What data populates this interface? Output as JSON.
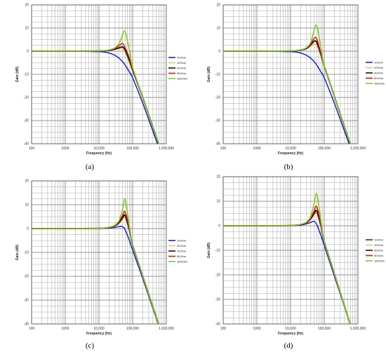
{
  "chart_data": [
    {
      "type": "line",
      "caption": "(a)",
      "xlabel": "Frequency (Hz)",
      "ylabel": "Gain (dB)",
      "xscale": "log",
      "xlim": [
        100,
        1000000
      ],
      "ylim": [
        -40,
        20
      ],
      "xticklabels": [
        "100",
        "1000",
        "10,000",
        "100,000",
        "1,000,000"
      ],
      "yticks": [
        20,
        10,
        0,
        -10,
        -20,
        -30,
        -40
      ],
      "grid": true,
      "legend_position": "right",
      "colors": [
        "#1f1fd0",
        "#f0c070",
        "#111111",
        "#e01010",
        "#7ccc1c"
      ],
      "series": [
        {
          "name": "10Ohm",
          "x": [
            100,
            1000,
            10000,
            20000,
            30000,
            40000,
            50000,
            60000,
            80000,
            100000,
            200000,
            500000,
            800000
          ],
          "y": [
            0,
            0,
            -0.2,
            -0.8,
            -1.8,
            -3.1,
            -4.5,
            -6,
            -9,
            -11.5,
            -22.5,
            -38.5,
            -46
          ]
        },
        {
          "name": "20Ohm",
          "x": [
            100,
            1000,
            10000,
            20000,
            30000,
            40000,
            50000,
            60000,
            80000,
            100000,
            200000,
            500000,
            800000
          ],
          "y": [
            0,
            0,
            0.1,
            0.4,
            0.8,
            1,
            0.8,
            -0.5,
            -5,
            -8.5,
            -20.5,
            -37,
            -45
          ]
        },
        {
          "name": "40Ohm",
          "x": [
            100,
            1000,
            10000,
            20000,
            30000,
            40000,
            50000,
            60000,
            80000,
            100000,
            200000,
            500000,
            800000
          ],
          "y": [
            0,
            0,
            0.1,
            0.4,
            0.9,
            1.5,
            1.8,
            0.5,
            -4,
            -8,
            -20,
            -37,
            -45
          ]
        },
        {
          "name": "80Ohm",
          "x": [
            100,
            1000,
            10000,
            20000,
            30000,
            40000,
            50000,
            60000,
            80000,
            100000,
            200000,
            500000,
            800000
          ],
          "y": [
            0,
            0,
            0.1,
            0.5,
            1.2,
            2.5,
            3.3,
            1.5,
            -3,
            -7.5,
            -20,
            -37,
            -45
          ]
        },
        {
          "name": "160Ohm",
          "x": [
            100,
            1000,
            10000,
            20000,
            30000,
            40000,
            50000,
            60000,
            80000,
            100000,
            200000,
            500000,
            800000
          ],
          "y": [
            0,
            0,
            0.1,
            0.6,
            1.5,
            3.5,
            7,
            8.4,
            0.5,
            -7,
            -20,
            -37,
            -45
          ]
        }
      ]
    },
    {
      "type": "line",
      "caption": "(b)",
      "xlabel": "Frequency (Hz)",
      "ylabel": "Gain (dB)",
      "xscale": "log",
      "xlim": [
        100,
        1000000
      ],
      "ylim": [
        -40,
        20
      ],
      "xticklabels": [
        "100",
        "1000",
        "10,000",
        "100,000",
        "1,000,000"
      ],
      "yticks": [
        20,
        10,
        0,
        -10,
        -20,
        -30,
        -40
      ],
      "grid": true,
      "legend_position": "right",
      "colors": [
        "#1f1fd0",
        "#f0c070",
        "#111111",
        "#e01010",
        "#7ccc1c"
      ],
      "series": [
        {
          "name": "10Ohm",
          "x": [
            100,
            1000,
            10000,
            20000,
            30000,
            40000,
            50000,
            60000,
            80000,
            100000,
            200000,
            500000,
            800000
          ],
          "y": [
            0,
            0,
            -0.2,
            -0.8,
            -1.8,
            -3.1,
            -4.5,
            -6,
            -9,
            -11.5,
            -22.5,
            -38.5,
            -46
          ]
        },
        {
          "name": "20Ohm",
          "x": [
            100,
            1000,
            10000,
            20000,
            30000,
            40000,
            50000,
            60000,
            80000,
            100000,
            200000,
            500000,
            800000
          ],
          "y": [
            0,
            0,
            0.1,
            0.5,
            1.2,
            2.3,
            3,
            2.5,
            -2,
            -6.5,
            -19.5,
            -37,
            -45
          ]
        },
        {
          "name": "40Ohm",
          "x": [
            100,
            1000,
            10000,
            20000,
            30000,
            40000,
            50000,
            60000,
            80000,
            100000,
            200000,
            500000,
            800000
          ],
          "y": [
            0,
            0,
            0.1,
            0.5,
            1.2,
            2.8,
            4.3,
            3.8,
            -1.5,
            -6.5,
            -19.5,
            -37,
            -45
          ]
        },
        {
          "name": "80Ohm",
          "x": [
            100,
            1000,
            10000,
            20000,
            30000,
            40000,
            50000,
            60000,
            80000,
            100000,
            200000,
            500000,
            800000
          ],
          "y": [
            0,
            0,
            0.1,
            0.6,
            1.4,
            3.2,
            5.6,
            5.3,
            -1,
            -6.5,
            -19.5,
            -37,
            -45
          ]
        },
        {
          "name": "160Ohm",
          "x": [
            100,
            1000,
            10000,
            20000,
            30000,
            40000,
            50000,
            60000,
            80000,
            100000,
            200000,
            500000,
            800000
          ],
          "y": [
            0,
            0,
            0.1,
            0.6,
            1.6,
            4,
            9,
            11,
            1.5,
            -6.5,
            -19.5,
            -37,
            -45
          ]
        }
      ]
    },
    {
      "type": "line",
      "caption": "(c)",
      "xlabel": "Frequency (Hz)",
      "ylabel": "Gain (dB)",
      "xscale": "log",
      "xlim": [
        100,
        1000000
      ],
      "ylim": [
        -40,
        20
      ],
      "xticklabels": [
        "100",
        "1000",
        "10,000",
        "100,000",
        "1,000,000"
      ],
      "yticks": [
        20,
        10,
        0,
        -10,
        -20,
        -30,
        -40
      ],
      "grid": true,
      "legend_position": "right",
      "colors": [
        "#1f1fd0",
        "#f0c070",
        "#111111",
        "#e01010",
        "#7ccc1c"
      ],
      "series": [
        {
          "name": "10Ohm",
          "x": [
            100,
            1000,
            10000,
            20000,
            30000,
            40000,
            50000,
            60000,
            80000,
            100000,
            200000,
            500000,
            800000
          ],
          "y": [
            0,
            0,
            0.05,
            0.2,
            0.5,
            0.9,
            0.8,
            -0.5,
            -5,
            -9,
            -21,
            -37.5,
            -45.5
          ]
        },
        {
          "name": "20Ohm",
          "x": [
            100,
            1000,
            10000,
            20000,
            30000,
            40000,
            50000,
            60000,
            80000,
            100000,
            200000,
            500000,
            800000
          ],
          "y": [
            0,
            0,
            0.1,
            0.4,
            1,
            2.2,
            3.8,
            4.5,
            -1,
            -7,
            -20,
            -37,
            -45
          ]
        },
        {
          "name": "40Ohm",
          "x": [
            100,
            1000,
            10000,
            20000,
            30000,
            40000,
            50000,
            60000,
            80000,
            100000,
            200000,
            500000,
            800000
          ],
          "y": [
            0,
            0,
            0.1,
            0.5,
            1.2,
            2.6,
            4.5,
            5.5,
            -0.5,
            -7,
            -20,
            -37,
            -45
          ]
        },
        {
          "name": "80Ohm",
          "x": [
            100,
            1000,
            10000,
            20000,
            30000,
            40000,
            50000,
            60000,
            80000,
            100000,
            200000,
            500000,
            800000
          ],
          "y": [
            0,
            0,
            0.1,
            0.5,
            1.3,
            3,
            5.5,
            7,
            0,
            -7,
            -20,
            -37,
            -45
          ]
        },
        {
          "name": "160Ohm",
          "x": [
            100,
            1000,
            10000,
            20000,
            30000,
            40000,
            50000,
            60000,
            80000,
            100000,
            200000,
            500000,
            800000
          ],
          "y": [
            0,
            0,
            0.1,
            0.6,
            1.5,
            3.6,
            8,
            12.2,
            1,
            -7,
            -20,
            -37,
            -45
          ]
        }
      ]
    },
    {
      "type": "line",
      "caption": "(d)",
      "xlabel": "Frequency (Hz)",
      "ylabel": "Gain (dB)",
      "xscale": "log",
      "xlim": [
        100,
        1000000
      ],
      "ylim": [
        -40,
        20
      ],
      "xticklabels": [
        "100",
        "1000",
        "10,000",
        "100,000",
        "1,000,000"
      ],
      "yticks": [
        20,
        10,
        0,
        -10,
        -20,
        -30,
        -40
      ],
      "grid": true,
      "legend_position": "right",
      "colors": [
        "#1f1fd0",
        "#f0c070",
        "#111111",
        "#e01010",
        "#7ccc1c"
      ],
      "series": [
        {
          "name": "10Ohm",
          "x": [
            100,
            1000,
            10000,
            20000,
            30000,
            40000,
            50000,
            60000,
            80000,
            100000,
            200000,
            500000,
            800000
          ],
          "y": [
            0,
            0,
            0.05,
            0.3,
            0.8,
            1.4,
            1.8,
            0.5,
            -4,
            -8,
            -20.5,
            -37,
            -45
          ]
        },
        {
          "name": "20Ohm",
          "x": [
            100,
            1000,
            10000,
            20000,
            30000,
            40000,
            50000,
            60000,
            80000,
            100000,
            200000,
            500000,
            800000
          ],
          "y": [
            0,
            0,
            0.1,
            0.5,
            1.2,
            2.6,
            4.3,
            5,
            -0.5,
            -6.5,
            -19.5,
            -37,
            -45
          ]
        },
        {
          "name": "40Ohm",
          "x": [
            100,
            1000,
            10000,
            20000,
            30000,
            40000,
            50000,
            60000,
            80000,
            100000,
            200000,
            500000,
            800000
          ],
          "y": [
            0,
            0,
            0.1,
            0.5,
            1.3,
            3,
            5,
            6,
            0,
            -6.5,
            -19.5,
            -37,
            -45
          ]
        },
        {
          "name": "80Ohm",
          "x": [
            100,
            1000,
            10000,
            20000,
            30000,
            40000,
            50000,
            60000,
            80000,
            100000,
            200000,
            500000,
            800000
          ],
          "y": [
            0,
            0,
            0.1,
            0.6,
            1.4,
            3.3,
            6,
            7.8,
            0.5,
            -6.5,
            -19.5,
            -37,
            -45
          ]
        },
        {
          "name": "160Ohm",
          "x": [
            100,
            1000,
            10000,
            20000,
            30000,
            40000,
            50000,
            60000,
            80000,
            100000,
            200000,
            500000,
            800000
          ],
          "y": [
            0,
            0,
            0.1,
            0.6,
            1.6,
            4,
            9,
            13,
            2,
            -6.5,
            -19.5,
            -37,
            -45
          ]
        }
      ]
    }
  ]
}
